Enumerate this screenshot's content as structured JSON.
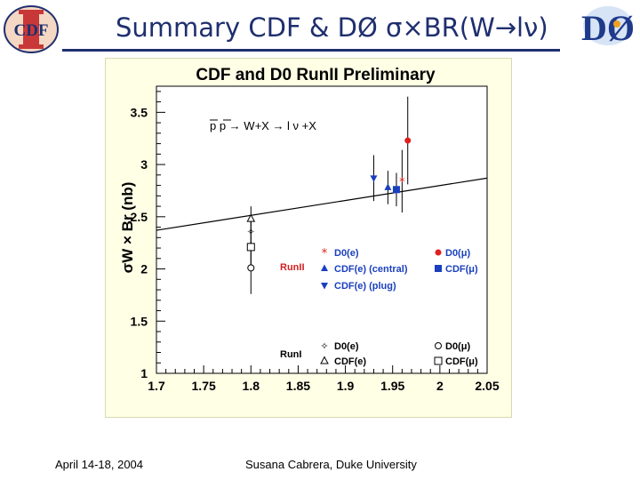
{
  "header": {
    "title": "Summary CDF & DØ σ×BR(W→lν)",
    "cdf_logo_text": "CDF",
    "d0_logo_text": "DØ"
  },
  "footer": {
    "date": "April 14-18, 2004",
    "author": "Susana Cabrera, Duke University"
  },
  "colors": {
    "title": "#1f2f6f",
    "d0": "#e02020",
    "cdf": "#1a3fbf",
    "panel": "#ffffe6"
  },
  "chart_data": {
    "type": "scatter",
    "title": "CDF and D0 RunII Preliminary",
    "process_label": "p p → W+X → l ν +X",
    "ylabel": "σW × Br (nb)",
    "xlabel": "",
    "xlim": [
      1.7,
      2.05
    ],
    "ylim": [
      1.0,
      3.75
    ],
    "xticks": [
      "1.7",
      "1.75",
      "1.8",
      "1.85",
      "1.9",
      "1.95",
      "2",
      "2.05"
    ],
    "yticks": [
      "1",
      "1.5",
      "2",
      "2.5",
      "3",
      "3.5"
    ],
    "grid": false,
    "theory_line": {
      "x": [
        1.7,
        2.05
      ],
      "y": [
        2.37,
        2.87
      ]
    },
    "legend": {
      "run2_label": "RunII",
      "run1_label": "RunI",
      "run2_entries": [
        "D0(e)",
        "CDF(e) (central)",
        "CDF(e) (plug)",
        "D0(μ)",
        "CDF(μ)"
      ],
      "run1_entries": [
        "D0(e)",
        "CDF(e)",
        "D0(μ)",
        "CDF(μ)"
      ]
    },
    "series": [
      {
        "name": "D0(e) RunII",
        "marker": "star",
        "color": "#e02020",
        "points": [
          {
            "x": 1.96,
            "y": 2.84,
            "err": 0.3
          }
        ]
      },
      {
        "name": "D0(μ) RunII",
        "marker": "circle-filled",
        "color": "#e02020",
        "points": [
          {
            "x": 1.966,
            "y": 3.23,
            "err": 0.42
          }
        ]
      },
      {
        "name": "CDF(e) (central) RunII",
        "marker": "triangle-up",
        "color": "#1a3fbf",
        "points": [
          {
            "x": 1.945,
            "y": 2.78,
            "err": 0.16
          }
        ]
      },
      {
        "name": "CDF(e) (plug) RunII",
        "marker": "triangle-down",
        "color": "#1a3fbf",
        "points": [
          {
            "x": 1.93,
            "y": 2.87,
            "err": 0.22
          }
        ]
      },
      {
        "name": "CDF(μ) RunII",
        "marker": "square-filled",
        "color": "#1a3fbf",
        "points": [
          {
            "x": 1.954,
            "y": 2.76,
            "err": 0.16
          }
        ]
      },
      {
        "name": "D0(e) RunI",
        "marker": "star-open",
        "color": "#000000",
        "points": [
          {
            "x": 1.8,
            "y": 2.36,
            "err": 0.15
          }
        ]
      },
      {
        "name": "CDF(e) RunI",
        "marker": "triangle-open",
        "color": "#000000",
        "points": [
          {
            "x": 1.8,
            "y": 2.48,
            "err": 0.12
          }
        ]
      },
      {
        "name": "D0(μ) RunI",
        "marker": "circle-open",
        "color": "#000000",
        "points": [
          {
            "x": 1.8,
            "y": 2.01,
            "err": 0.25
          }
        ]
      },
      {
        "name": "CDF(μ) RunI",
        "marker": "square-open",
        "color": "#000000",
        "points": [
          {
            "x": 1.8,
            "y": 2.21,
            "err": 0.17
          }
        ]
      }
    ]
  }
}
